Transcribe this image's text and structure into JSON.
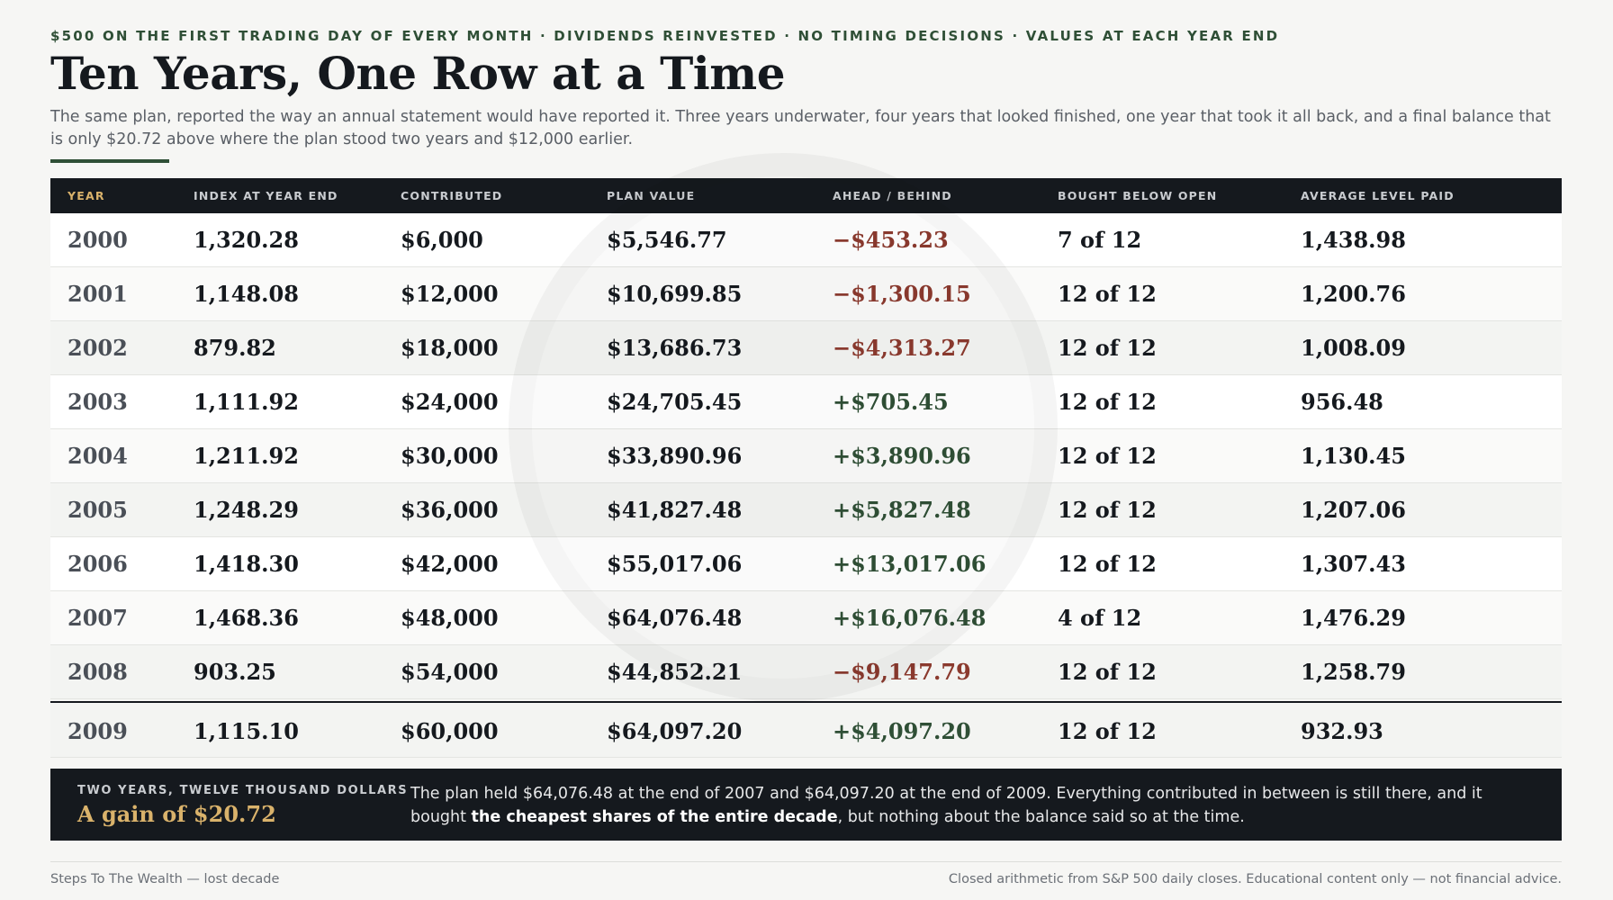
{
  "header": {
    "kicker": "$500 ON THE FIRST TRADING DAY OF EVERY MONTH · DIVIDENDS REINVESTED · NO TIMING DECISIONS · VALUES AT EACH YEAR END",
    "title": "Ten Years, One Row at a Time",
    "subtitle": "The same plan, reported the way an annual statement would have reported it. Three years underwater, four years that looked finished, one year that took it all back, and a final balance that is only $20.72 above where the plan stood two years and $12,000 earlier."
  },
  "table": {
    "columns": [
      "YEAR",
      "INDEX AT YEAR END",
      "CONTRIBUTED",
      "PLAN VALUE",
      "AHEAD / BEHIND",
      "BOUGHT BELOW OPEN",
      "AVERAGE LEVEL PAID"
    ],
    "rows": [
      [
        "2000",
        "1,320.28",
        "$6,000",
        "$5,546.77",
        "−$453.23",
        "7 of 12",
        "1,438.98"
      ],
      [
        "2001",
        "1,148.08",
        "$12,000",
        "$10,699.85",
        "−$1,300.15",
        "12 of 12",
        "1,200.76"
      ],
      [
        "2002",
        "879.82",
        "$18,000",
        "$13,686.73",
        "−$4,313.27",
        "12 of 12",
        "1,008.09"
      ],
      [
        "2003",
        "1,111.92",
        "$24,000",
        "$24,705.45",
        "+$705.45",
        "12 of 12",
        "956.48"
      ],
      [
        "2004",
        "1,211.92",
        "$30,000",
        "$33,890.96",
        "+$3,890.96",
        "12 of 12",
        "1,130.45"
      ],
      [
        "2005",
        "1,248.29",
        "$36,000",
        "$41,827.48",
        "+$5,827.48",
        "12 of 12",
        "1,207.06"
      ],
      [
        "2006",
        "1,418.30",
        "$42,000",
        "$55,017.06",
        "+$13,017.06",
        "12 of 12",
        "1,307.43"
      ],
      [
        "2007",
        "1,468.36",
        "$48,000",
        "$64,076.48",
        "+$16,076.48",
        "4 of 12",
        "1,476.29"
      ],
      [
        "2008",
        "903.25",
        "$54,000",
        "$44,852.21",
        "−$9,147.79",
        "12 of 12",
        "1,258.79"
      ],
      [
        "2009",
        "1,115.10",
        "$60,000",
        "$64,097.20",
        "+$4,097.20",
        "12 of 12",
        "932.93"
      ]
    ]
  },
  "callout": {
    "label": "TWO YEARS, TWELVE THOUSAND DOLLARS",
    "headline": "A gain of $20.72",
    "text_before": "The plan held $64,076.48 at the end of 2007 and $64,097.20 at the end of 2009. Everything contributed in between is still there, and it bought ",
    "text_bold": "the cheapest shares of the entire decade",
    "text_after": ", but nothing about the balance said so at the time."
  },
  "footer": {
    "left": "Steps To The Wealth — lost decade",
    "right": "Closed arithmetic from S&P 500 daily closes. Educational content only — not financial advice."
  }
}
